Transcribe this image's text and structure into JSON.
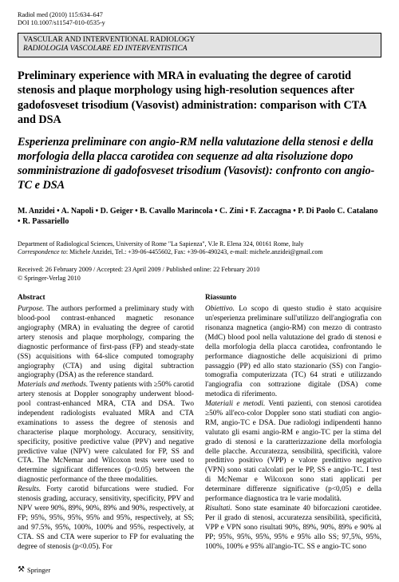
{
  "running_head": {
    "line1": "Radiol med (2010) 115:634–647",
    "line2": "DOI 10.1007/s11547-010-0535-y"
  },
  "subject": {
    "en": "VASCULAR AND INTERVENTIONAL RADIOLOGY",
    "it": "RADIOLOGIA VASCOLARE ED INTERVENTISTICA"
  },
  "title_en": "Preliminary experience with MRA in evaluating the degree of carotid stenosis and plaque morphology using high-resolution sequences after gadofosveset trisodium (Vasovist) administration: comparison with CTA and DSA",
  "title_it": "Esperienza preliminare con angio-RM nella valutazione della stenosi e della morfologia della placca carotidea con sequenze ad alta risoluzione dopo somministrazione di gadofosveset trisodium (Vasovist): confronto con angio-TC e DSA",
  "authors": "M. Anzidei • A. Napoli • D. Geiger • B. Cavallo Marincola • C. Zini • F. Zaccagna • P. Di Paolo C. Catalano • R. Passariello",
  "affil": {
    "dept": "Department of Radiological Sciences, University of Rome \"La Sapienza\", V.le R. Elena 324, 00161 Rome, Italy",
    "corr_label": "Correspondence to",
    "corr_text": ": Michele Anzidei, Tel.: +39-06-4455602, Fax: +39-06-490243, e-mail: michele.anzidei@gmail.com"
  },
  "dates": {
    "line1": "Received: 26 February 2009 / Accepted: 23 April 2009 / Published online: 22 February 2010",
    "line2": "© Springer-Verlag 2010"
  },
  "abstract_en": {
    "heading": "Abstract",
    "purpose_label": "Purpose.",
    "purpose_text": " The authors performed a preliminary study with blood-pool contrast-enhanced magnetic resonance angiography (MRA) in evaluating the degree of carotid artery stenosis and plaque morphology, comparing the diagnostic performance of first-pass (FP) and steady-state (SS) acquisitions with 64-slice computed tomography angiography (CTA) and using digital subtraction angiography (DSA) as the reference standard.",
    "methods_label": "Materials and methods.",
    "methods_text": " Twenty patients with ≥50% carotid artery stenosis at Doppler sonography underwent blood-pool contrast-enhanced MRA, CTA and DSA. Two independent radiologists evaluated MRA and CTA examinations to assess the degree of stenosis and characterise plaque morphology. Accuracy, sensitivity, specificity, positive predictive value (PPV) and negative predictive value (NPV) were calculated for FP, SS and CTA. The McNemar and Wilcoxon tests were used to determine significant differences (p<0.05) between the diagnostic performance of the three modalities.",
    "results_label": "Results.",
    "results_text": " Forty carotid bifurcations were studied. For stenosis grading, accuracy, sensitivity, specificity, PPV and NPV were 90%, 89%, 90%, 89% and 90%, respectively, at FP; 95%, 95%, 95%, 95% and 95%, respectively, at SS; and 97.5%, 95%, 100%, 100% and 95%, respectively, at CTA. SS and CTA were superior to FP for evaluating the degree of stenosis (p<0.05). For"
  },
  "abstract_it": {
    "heading": "Riassunto",
    "purpose_label": "Obiettivo.",
    "purpose_text": " Lo scopo di questo studio è stato acquisire un'esperienza preliminare sull'utilizzo dell'angiografia con risonanza magnetica (angio-RM) con mezzo di contrasto (MdC) blood pool nella valutazione del grado di stenosi e della morfologia della placca carotidea, confrontando le performance diagnostiche delle acquisizioni di primo passaggio (PP) ed allo stato stazionario (SS) con l'angio-tomografia computerizzata (TC) 64 strati e utilizzando l'angiografia con sottrazione digitale (DSA) come metodica di riferimento.",
    "methods_label": "Materiali e metodi.",
    "methods_text": " Venti pazienti, con stenosi carotidea ≥50% all'eco-color Doppler sono stati studiati con angio-RM, angio-TC e DSA. Due radiologi indipendenti hanno valutato gli esami angio-RM e angio-TC per la stima del grado di stenosi e la caratterizzazione della morfologia delle placche. Accuratezza, sensibilità, specificità, valore predittivo positivo (VPP) e valore predittivo negativo (VPN) sono stati calcolati per le PP, SS e angio-TC. I test di McNemar e Wilcoxon sono stati applicati per determinare differenze significative (p<0,05) e della performance diagnostica tra le varie modalità.",
    "results_label": "Risultati.",
    "results_text": " Sono state esaminate 40 biforcazioni carotidee. Per il grado di stenosi, accuratezza sensibilità, specificità, VPP e VPN sono risultati 90%, 89%, 90%, 89% e 90% al PP; 95%, 95%, 95%, 95% e 95% allo SS; 97,5%, 95%, 100%, 100% e 95% all'angio-TC. SS e angio-TC sono"
  },
  "footer": {
    "publisher": "Springer"
  }
}
